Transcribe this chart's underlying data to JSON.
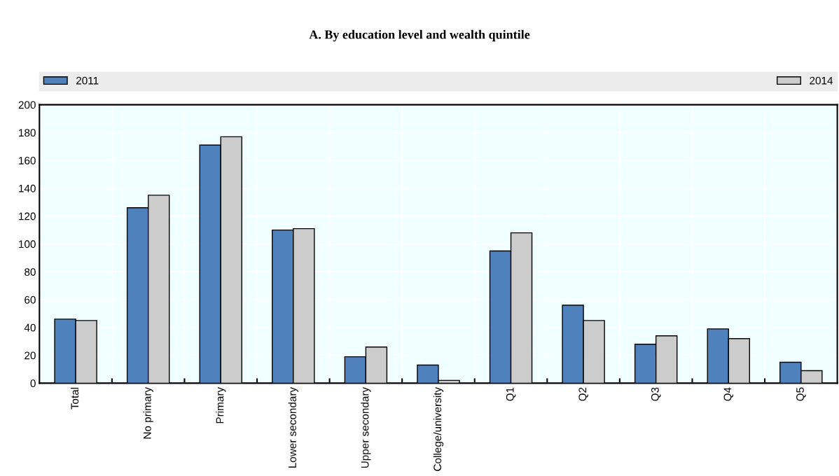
{
  "chart_data": {
    "type": "bar",
    "title": "A. By education level and wealth quintile",
    "categories": [
      "Total",
      "No primary",
      "Primary",
      "Lower secondary",
      "Upper secondary",
      "College/university",
      "Q1",
      "Q2",
      "Q3",
      "Q4",
      "Q5"
    ],
    "series": [
      {
        "name": "2011",
        "color": "#4f81bd",
        "values": [
          46,
          126,
          171,
          110,
          19,
          13,
          95,
          56,
          28,
          39,
          15
        ]
      },
      {
        "name": "2014",
        "color": "#cccccc",
        "values": [
          45,
          135,
          177,
          111,
          26,
          2,
          108,
          45,
          34,
          32,
          9
        ]
      }
    ],
    "ylim": [
      0,
      200
    ],
    "yticks": [
      0,
      20,
      40,
      60,
      80,
      100,
      120,
      140,
      160,
      180,
      200
    ],
    "grid": true,
    "legend": "top"
  }
}
